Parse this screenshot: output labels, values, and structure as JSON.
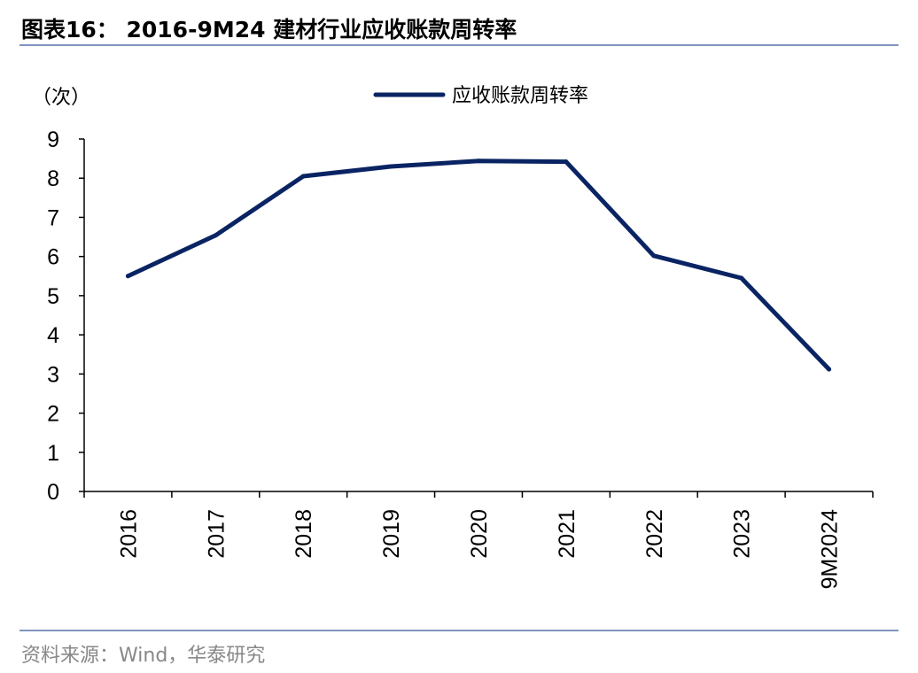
{
  "title": "图表16： 2016-9M24 建材行业应收账款周转率",
  "source": "资料来源：Wind，华泰研究",
  "chart_data": {
    "type": "line",
    "title": "",
    "ylabel": "（次）",
    "xlabel": "",
    "categories": [
      "2016",
      "2017",
      "2018",
      "2019",
      "2020",
      "2021",
      "2022",
      "2023",
      "9M2024"
    ],
    "series": [
      {
        "name": "应收账款周转率",
        "values": [
          5.5,
          6.54,
          8.05,
          8.3,
          8.44,
          8.42,
          6.02,
          5.45,
          3.12
        ],
        "color": "#0a2463"
      }
    ],
    "ylim": [
      0,
      9
    ],
    "yticks": [
      "0",
      "1",
      "2",
      "3",
      "4",
      "5",
      "6",
      "7",
      "8",
      "9"
    ],
    "grid": false,
    "legend": "top-center"
  }
}
